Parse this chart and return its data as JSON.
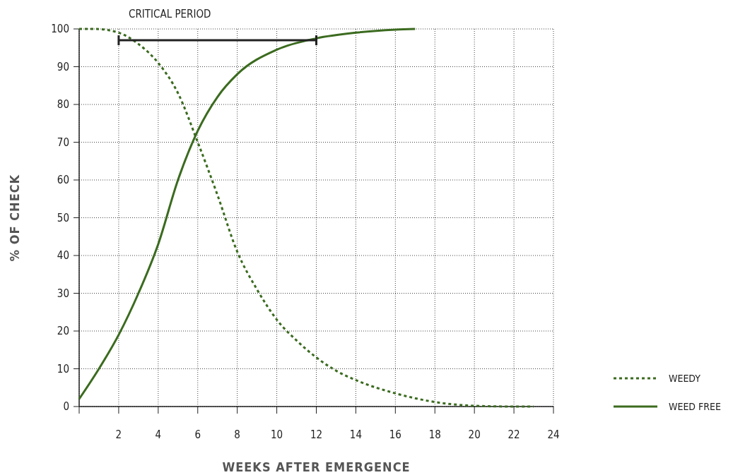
{
  "chart_data": {
    "type": "line",
    "xlabel": "WEEKS AFTER EMERGENCE",
    "ylabel": "% OF CHECK",
    "xlim": [
      0,
      24
    ],
    "xticks": [
      {
        "value": 0,
        "label": null
      },
      2,
      4,
      6,
      8,
      10,
      12,
      14,
      16,
      18,
      20,
      22,
      24
    ],
    "ylim": [
      0,
      100
    ],
    "yticks": [
      0,
      10,
      20,
      30,
      40,
      50,
      60,
      70,
      80,
      90,
      100
    ],
    "grid": true,
    "legend": "bottom right",
    "series": [
      {
        "name": "WEEDY",
        "color": "#3b6b1f",
        "line_style": "dotted",
        "x": [
          0,
          0.8,
          2,
          3,
          4,
          5,
          6,
          7,
          8,
          9,
          10,
          11,
          12,
          13,
          14,
          16,
          18,
          20,
          22,
          23
        ],
        "values": [
          100,
          100,
          99,
          96,
          91,
          83,
          70,
          56,
          41,
          31,
          23,
          17.5,
          13,
          9.5,
          7,
          3.5,
          1.2,
          0.2,
          0,
          0
        ]
      },
      {
        "name": "WEED FREE",
        "color": "#3b6b1f",
        "line_style": "solid",
        "x": [
          0,
          1,
          2,
          3,
          4,
          5,
          6,
          7,
          8,
          10,
          12,
          14,
          16,
          17
        ],
        "values": [
          2,
          10,
          19,
          30,
          43,
          60,
          73,
          82,
          88,
          94.5,
          97.5,
          99,
          99.8,
          100
        ]
      },
      {
        "color": "#222222",
        "line_style": "solid",
        "x": [
          2,
          12
        ],
        "values": [
          97,
          97
        ]
      }
    ],
    "annotations": [
      "CRITICAL PERIOD"
    ]
  }
}
